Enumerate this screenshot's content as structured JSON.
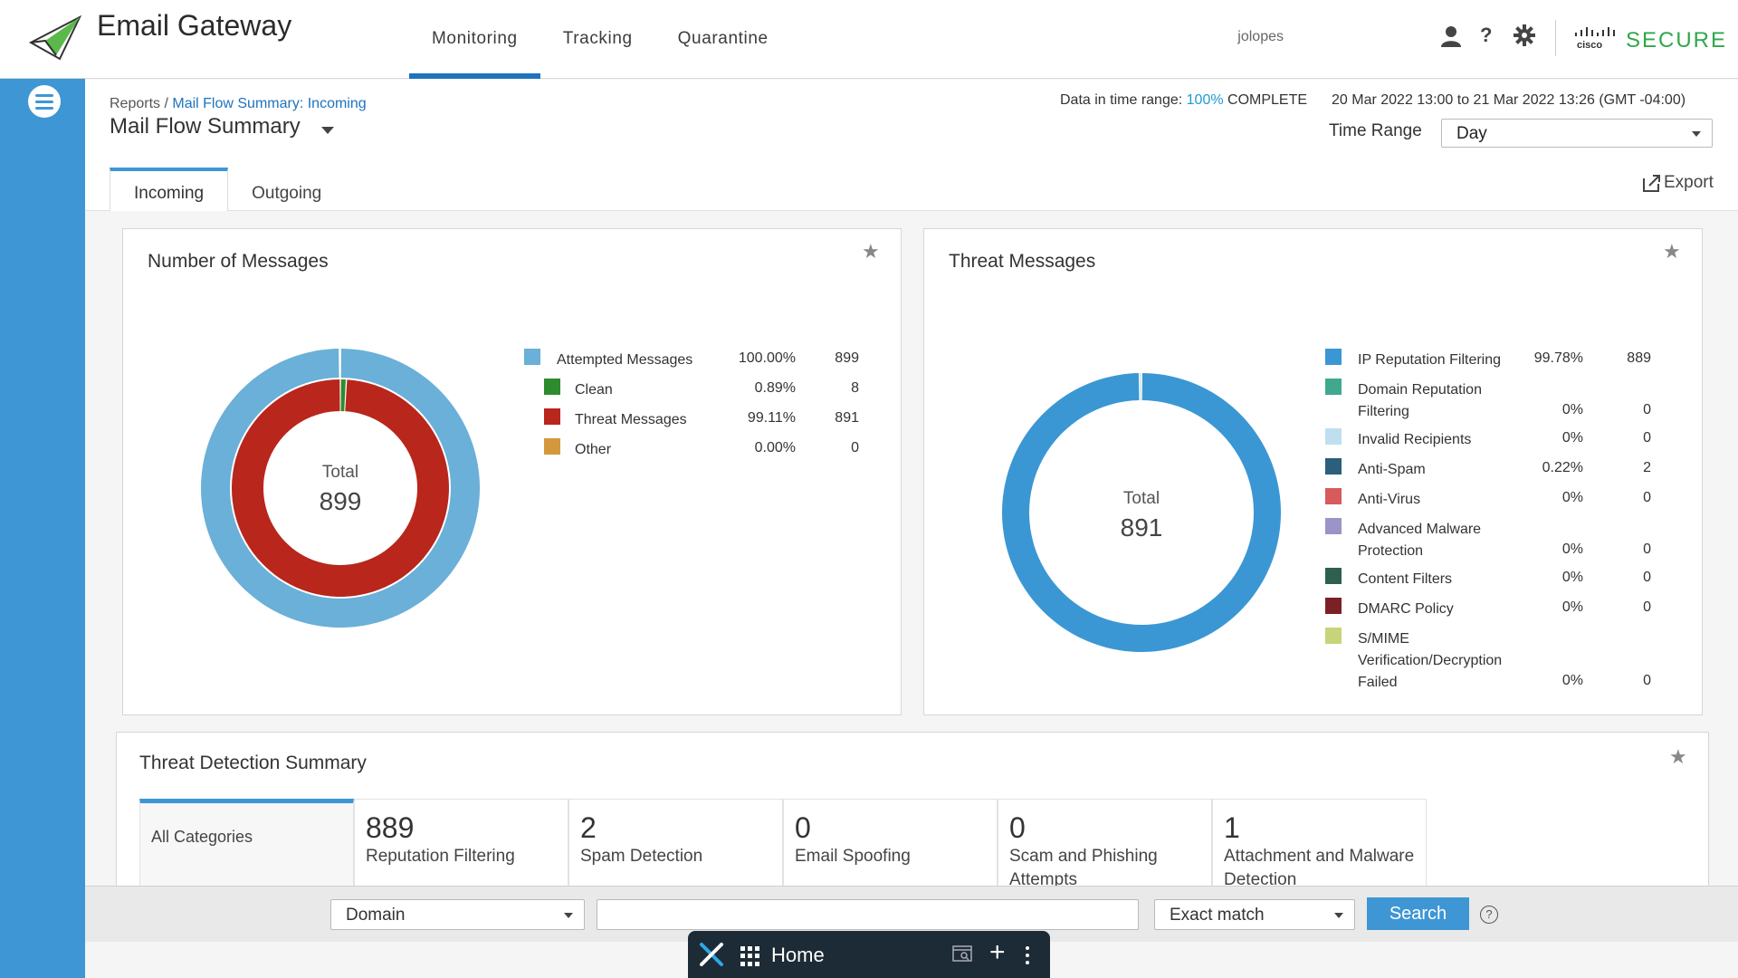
{
  "header": {
    "app_title": "Email Gateway",
    "nav": [
      {
        "label": "Monitoring",
        "active": true
      },
      {
        "label": "Tracking",
        "active": false
      },
      {
        "label": "Quarantine",
        "active": false
      }
    ],
    "username": "jolopes",
    "help_label": "?",
    "brand_text": "SECURE",
    "cisco_text": "cisco",
    "accent_color": "#1e73be",
    "brand_color": "#2ea84a"
  },
  "page": {
    "breadcrumb_root": "Reports /",
    "breadcrumb_current": "Mail Flow Summary: Incoming",
    "title": "Mail Flow Summary",
    "data_range_prefix": "Data in time range:",
    "data_range_pct": "100%",
    "data_range_status": "COMPLETE",
    "date_range": "20 Mar 2022 13:00 to 21 Mar 2022 13:26 (GMT -04:00)",
    "time_range_label": "Time Range",
    "time_range_value": "Day",
    "tabs": [
      {
        "label": "Incoming",
        "active": true
      },
      {
        "label": "Outgoing",
        "active": false
      }
    ],
    "export_label": "Export"
  },
  "messages_panel": {
    "title": "Number of Messages",
    "total_label": "Total",
    "total_value": "899",
    "legend": [
      {
        "label": "Attempted Messages",
        "pct": "100.00%",
        "count": "899",
        "color": "#6ab0d8"
      },
      {
        "label": "Clean",
        "pct": "0.89%",
        "count": "8",
        "color": "#2e8b2e"
      },
      {
        "label": "Threat Messages",
        "pct": "99.11%",
        "count": "891",
        "color": "#b8261c"
      },
      {
        "label": "Other",
        "pct": "0.00%",
        "count": "0",
        "color": "#d4983c"
      }
    ]
  },
  "threat_panel": {
    "title": "Threat Messages",
    "total_label": "Total",
    "total_value": "891",
    "legend": [
      {
        "label_lines": [
          "IP Reputation Filtering"
        ],
        "pct": "99.78%",
        "count": "889",
        "color": "#3b97d4"
      },
      {
        "label_lines": [
          "Domain Reputation",
          "Filtering"
        ],
        "pct": "0%",
        "count": "0",
        "color": "#3fa88e"
      },
      {
        "label_lines": [
          "Invalid Recipients"
        ],
        "pct": "0%",
        "count": "0",
        "color": "#bfdff0"
      },
      {
        "label_lines": [
          "Anti-Spam"
        ],
        "pct": "0.22%",
        "count": "2",
        "color": "#2c5f7c"
      },
      {
        "label_lines": [
          "Anti-Virus"
        ],
        "pct": "0%",
        "count": "0",
        "color": "#d85a5a"
      },
      {
        "label_lines": [
          "Advanced Malware",
          "Protection"
        ],
        "pct": "0%",
        "count": "0",
        "color": "#9a94c8"
      },
      {
        "label_lines": [
          "Content Filters"
        ],
        "pct": "0%",
        "count": "0",
        "color": "#2e6050"
      },
      {
        "label_lines": [
          "DMARC Policy"
        ],
        "pct": "0%",
        "count": "0",
        "color": "#7c2028"
      },
      {
        "label_lines": [
          "S/MIME",
          "Verification/Decryption",
          "Failed"
        ],
        "pct": "0%",
        "count": "0",
        "color": "#c9d47a"
      }
    ]
  },
  "chart_data": [
    {
      "type": "pie",
      "title": "Number of Messages",
      "rings": [
        {
          "name": "outer",
          "slices": [
            {
              "label": "Attempted Messages",
              "value": 899
            }
          ]
        },
        {
          "name": "inner",
          "slices": [
            {
              "label": "Clean",
              "value": 8
            },
            {
              "label": "Threat Messages",
              "value": 891
            },
            {
              "label": "Other",
              "value": 0
            }
          ]
        }
      ],
      "center_text": "Total 899"
    },
    {
      "type": "pie",
      "title": "Threat Messages",
      "slices": [
        {
          "label": "IP Reputation Filtering",
          "value": 889
        },
        {
          "label": "Anti-Spam",
          "value": 2
        }
      ],
      "center_text": "Total 891"
    }
  ],
  "threat_summary": {
    "title": "Threat Detection Summary",
    "tiles": [
      {
        "num": "",
        "label": "All Categories",
        "active": true
      },
      {
        "num": "889",
        "label": "Reputation Filtering"
      },
      {
        "num": "2",
        "label": "Spam Detection"
      },
      {
        "num": "0",
        "label": "Email Spoofing"
      },
      {
        "num": "0",
        "label": "Scam and Phishing Attempts"
      },
      {
        "num": "1",
        "label": "Attachment and Malware Detection"
      }
    ]
  },
  "search_bar": {
    "field_select": "Domain",
    "query_value": "",
    "match_select": "Exact match",
    "search_label": "Search",
    "help_label": "?"
  },
  "taskbar": {
    "home_label": "Home",
    "plus_label": "+"
  }
}
